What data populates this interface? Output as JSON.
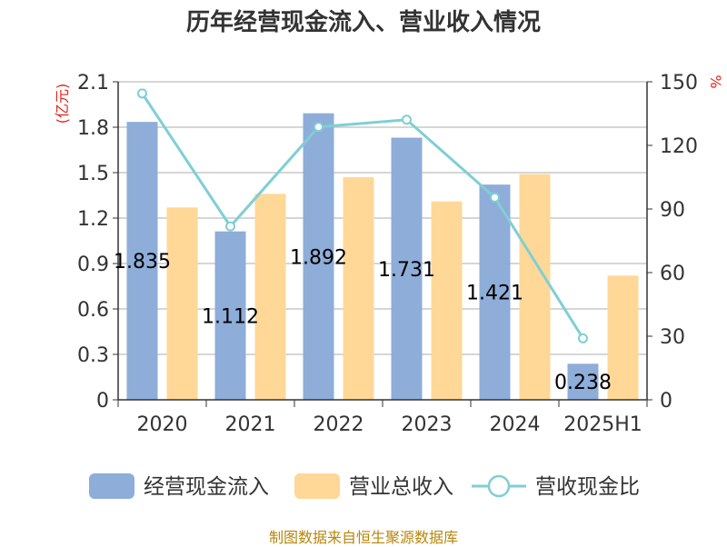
{
  "chart_data": {
    "type": "bar",
    "title": "历年经营现金流入、营业收入情况",
    "categories": [
      "2020",
      "2021",
      "2022",
      "2023",
      "2024",
      "2025H1"
    ],
    "series": [
      {
        "name": "经营现金流入",
        "type": "bar",
        "axis": "left",
        "values": [
          1.835,
          1.112,
          1.892,
          1.731,
          1.421,
          0.238
        ],
        "labels": [
          "1.835",
          "1.112",
          "1.892",
          "1.731",
          "1.421",
          "0.238"
        ],
        "color": "#8eadd9"
      },
      {
        "name": "营业总收入",
        "type": "bar",
        "axis": "left",
        "values": [
          1.27,
          1.36,
          1.47,
          1.31,
          1.49,
          0.82
        ],
        "color": "#ffd897"
      },
      {
        "name": "营收现金比",
        "type": "line",
        "axis": "right",
        "values": [
          144.5,
          81.8,
          128.7,
          132.1,
          95.4,
          29.0
        ],
        "color": "#7ecfd4"
      }
    ],
    "y_left": {
      "unit": "(亿元)",
      "ylim": [
        0,
        2.1
      ],
      "ticks": [
        "0",
        "0.3",
        "0.6",
        "0.9",
        "1.2",
        "1.5",
        "1.8",
        "2.1"
      ],
      "tick_values": [
        0,
        0.3,
        0.6,
        0.9,
        1.2,
        1.5,
        1.8,
        2.1
      ]
    },
    "y_right": {
      "unit": "%",
      "ylim": [
        0,
        150
      ],
      "ticks": [
        "0",
        "30",
        "60",
        "90",
        "120",
        "150"
      ],
      "tick_values": [
        0,
        30,
        60,
        90,
        120,
        150
      ]
    },
    "grid": true,
    "legend_position": "bottom"
  },
  "colors": {
    "grid": "#c8c8c8",
    "axis": "#333333",
    "unit": "#e0251b",
    "source": "#b8860b"
  },
  "source_note": "制图数据来自恒生聚源数据库"
}
